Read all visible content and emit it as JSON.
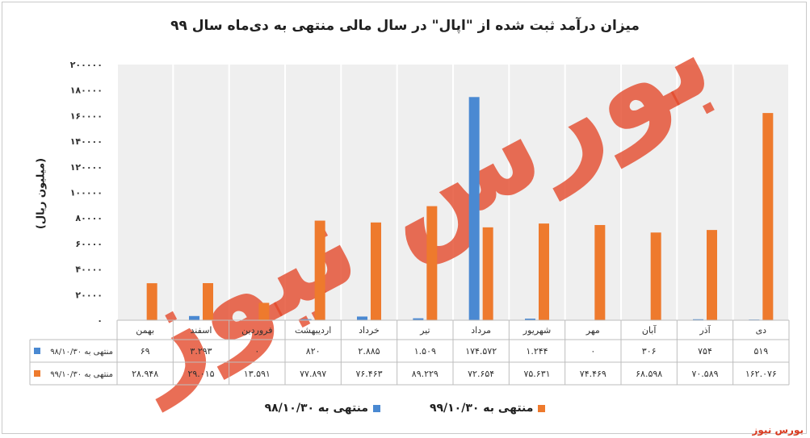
{
  "chart_data": {
    "type": "bar",
    "title": "میزان درآمد ثبت شده از \"اپال\" در سال مالی منتهی به دی‌ماه سال ۹۹",
    "ylabel": "(میلیون ریال)",
    "ylim": [
      0,
      200000
    ],
    "yticks": [
      0,
      20000,
      40000,
      60000,
      80000,
      100000,
      120000,
      140000,
      160000,
      180000,
      200000
    ],
    "ytick_labels": [
      "۰",
      "۲۰۰۰۰",
      "۴۰۰۰۰",
      "۶۰۰۰۰",
      "۸۰۰۰۰",
      "۱۰۰۰۰۰",
      "۱۲۰۰۰۰",
      "۱۴۰۰۰۰",
      "۱۶۰۰۰۰",
      "۱۸۰۰۰۰",
      "۲۰۰۰۰۰"
    ],
    "categories": [
      "بهمن",
      "اسفند",
      "فروردین",
      "اردیبهشت",
      "خرداد",
      "تیر",
      "مرداد",
      "شهریور",
      "مهر",
      "آبان",
      "آذر",
      "دی"
    ],
    "series": [
      {
        "name": "منتهی به ۹۸/۱۰/۳۰",
        "color": "#4a89d2",
        "values": [
          69,
          3293,
          0,
          820,
          2885,
          1509,
          174572,
          1244,
          0,
          306,
          754,
          519
        ],
        "labels": [
          "۶۹",
          "۳.۲۹۳",
          "۰",
          "۸۲۰",
          "۲.۸۸۵",
          "۱.۵۰۹",
          "۱۷۴.۵۷۲",
          "۱.۲۴۴",
          "۰",
          "۳۰۶",
          "۷۵۴",
          "۵۱۹"
        ]
      },
      {
        "name": "منتهی به ۹۹/۱۰/۳۰",
        "color": "#ee7a2d",
        "values": [
          28948,
          29015,
          13591,
          77897,
          76463,
          89229,
          72654,
          75631,
          74469,
          68598,
          70589,
          162076
        ],
        "labels": [
          "۲۸.۹۴۸",
          "۲۹.۰۱۵",
          "۱۳.۵۹۱",
          "۷۷.۸۹۷",
          "۷۶.۴۶۳",
          "۸۹.۲۲۹",
          "۷۲.۶۵۴",
          "۷۵.۶۳۱",
          "۷۴.۴۶۹",
          "۶۸.۵۹۸",
          "۷۰.۵۸۹",
          "۱۶۲.۰۷۶"
        ]
      }
    ],
    "grid": true,
    "legend_position": "bottom",
    "data_table": true
  },
  "watermark": {
    "text": "بورس نیوز"
  },
  "brand": "بورس نیوز"
}
